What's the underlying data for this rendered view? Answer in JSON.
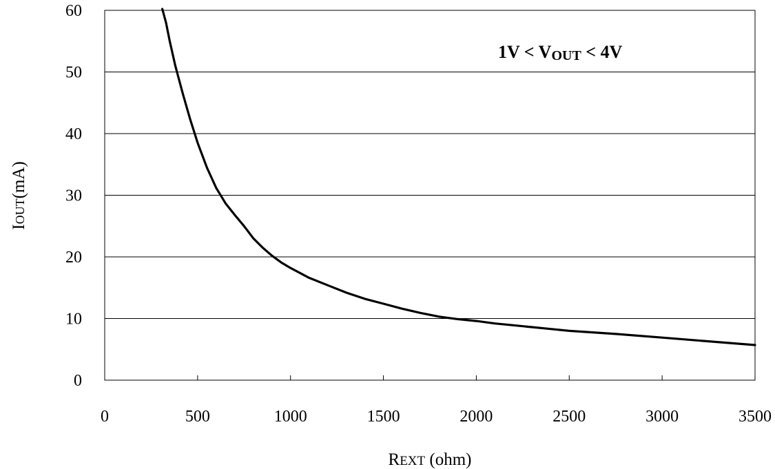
{
  "chart_data": {
    "type": "line",
    "title": "",
    "annotation": {
      "prefix": "1V < V",
      "subscript": "OUT",
      "suffix": " < 4V"
    },
    "xlabel": {
      "main": "R",
      "sub": "EXT",
      "unit": " (ohm)"
    },
    "ylabel": {
      "main": "I",
      "sub": "OUT",
      "unit": "(mA)"
    },
    "xlim": [
      0,
      3500
    ],
    "ylim": [
      0,
      60
    ],
    "xticks": [
      "0",
      "500",
      "1000",
      "1500",
      "2000",
      "2500",
      "3000",
      "3500"
    ],
    "yticks": [
      "0",
      "10",
      "20",
      "30",
      "40",
      "50",
      "60"
    ],
    "grid": {
      "horizontal": true,
      "vertical": false
    },
    "line_color": "#000000",
    "series": [
      {
        "x": [
          310,
          330,
          350,
          380,
          420,
          460,
          500,
          550,
          600,
          650,
          700,
          750,
          800,
          850,
          900,
          950,
          1000,
          1100,
          1200,
          1300,
          1400,
          1500,
          1600,
          1700,
          1800,
          1900,
          2000,
          2100,
          2200,
          2300,
          2400,
          2500,
          2750,
          3000,
          3250,
          3500
        ],
        "y": [
          60.5,
          58.0,
          55.0,
          51.0,
          46.5,
          42.3,
          38.5,
          34.5,
          31.2,
          28.7,
          26.8,
          25.0,
          23.0,
          21.5,
          20.2,
          19.1,
          18.2,
          16.6,
          15.4,
          14.2,
          13.2,
          12.4,
          11.6,
          10.9,
          10.3,
          9.9,
          9.6,
          9.2,
          8.9,
          8.6,
          8.3,
          8.0,
          7.5,
          6.9,
          6.3,
          5.7
        ]
      }
    ]
  }
}
